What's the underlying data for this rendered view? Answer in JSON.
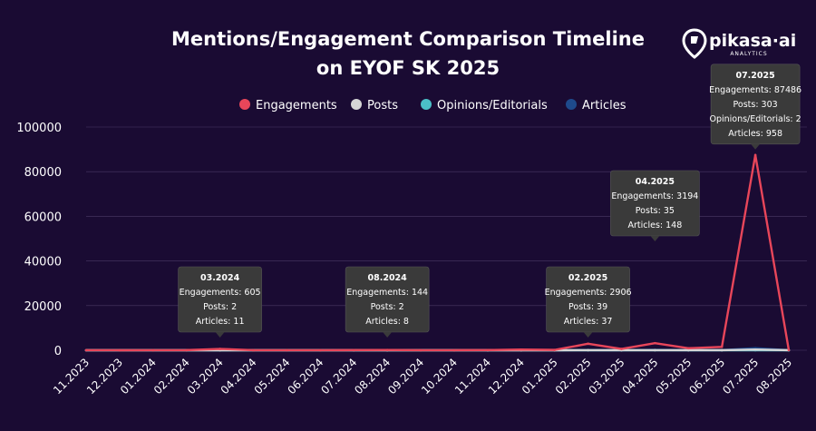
{
  "brand": {
    "name": "pikasa·ai",
    "tagline": "ANALYTICS"
  },
  "colors": {
    "background": "#1a0b33",
    "engagements": "#e8465a",
    "posts": "#d6d6d6",
    "opinions": "#4bc0c8",
    "articles": "#1e4a8c",
    "tooltip_bg": "#3a3a3a"
  },
  "chart_data": {
    "type": "line",
    "title": "Mentions/Engagement Comparison Timeline",
    "subtitle": "on EYOF SK 2025",
    "xlabel": "",
    "ylabel": "",
    "ylim": [
      0,
      100000
    ],
    "yticks": [
      0,
      20000,
      40000,
      60000,
      80000,
      100000
    ],
    "grid": true,
    "legend_position": "top",
    "categories": [
      "11.2023",
      "12.2023",
      "01.2024",
      "02.2024",
      "03.2024",
      "04.2024",
      "05.2024",
      "06.2024",
      "07.2024",
      "08.2024",
      "09.2024",
      "10.2024",
      "11.2024",
      "12.2024",
      "01.2025",
      "02.2025",
      "03.2025",
      "04.2025",
      "05.2025",
      "06.2025",
      "07.2025",
      "08.2025"
    ],
    "series": [
      {
        "name": "Engagements",
        "color": "#e8465a",
        "values": [
          10,
          5,
          20,
          50,
          605,
          30,
          20,
          40,
          60,
          144,
          30,
          40,
          80,
          300,
          150,
          2906,
          600,
          3194,
          900,
          1500,
          87486,
          50
        ]
      },
      {
        "name": "Posts",
        "color": "#d6d6d6",
        "values": [
          1,
          1,
          1,
          1,
          2,
          1,
          1,
          1,
          1,
          2,
          1,
          1,
          1,
          2,
          3,
          39,
          10,
          35,
          12,
          20,
          303,
          5
        ]
      },
      {
        "name": "Opinions/Editorials",
        "color": "#4bc0c8",
        "values": [
          0,
          0,
          0,
          0,
          0,
          0,
          0,
          0,
          0,
          0,
          0,
          0,
          0,
          0,
          0,
          0,
          0,
          0,
          0,
          0,
          2,
          0
        ]
      },
      {
        "name": "Articles",
        "color": "#1e4a8c",
        "values": [
          2,
          1,
          2,
          3,
          11,
          3,
          2,
          3,
          4,
          8,
          3,
          4,
          6,
          10,
          15,
          37,
          20,
          148,
          30,
          50,
          958,
          10
        ]
      }
    ],
    "tooltips": [
      {
        "index": 4,
        "title": "03.2024",
        "lines": [
          "Engagements: 605",
          "Posts: 2",
          "Articles: 11"
        ]
      },
      {
        "index": 9,
        "title": "08.2024",
        "lines": [
          "Engagements: 144",
          "Posts: 2",
          "Articles: 8"
        ]
      },
      {
        "index": 15,
        "title": "02.2025",
        "lines": [
          "Engagements: 2906",
          "Posts: 39",
          "Articles: 37"
        ]
      },
      {
        "index": 17,
        "title": "04.2025",
        "lines": [
          "Engagements: 3194",
          "Posts: 35",
          "Articles: 148"
        ]
      },
      {
        "index": 20,
        "title": "07.2025",
        "lines": [
          "Engagements: 87486",
          "Posts: 303",
          "Opinions/Editorials: 2",
          "Articles: 958"
        ]
      }
    ]
  }
}
